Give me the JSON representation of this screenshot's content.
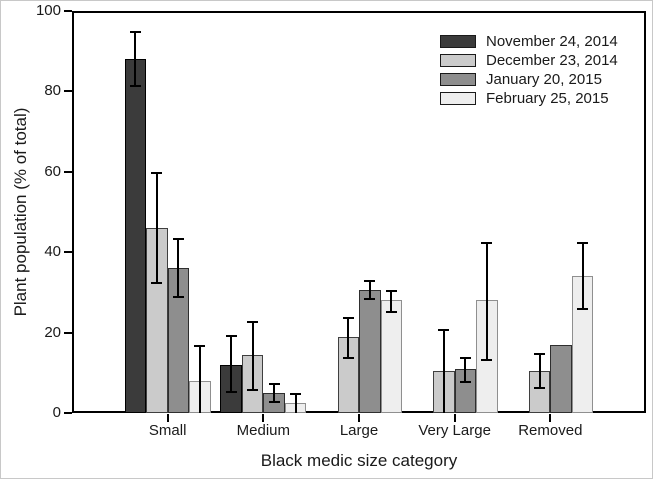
{
  "chart_data": {
    "type": "bar",
    "title": "",
    "xlabel": "Black medic size category",
    "ylabel": "Plant population (% of total)",
    "ylim": [
      0,
      100
    ],
    "yticks": [
      0,
      20,
      40,
      60,
      80,
      100
    ],
    "categories": [
      "Small",
      "Medium",
      "Large",
      "Very Large",
      "Removed"
    ],
    "grid": false,
    "legend_position": "top-right-inside",
    "error_bar_color": "#000000",
    "axis_color": "#000000",
    "series": [
      {
        "name": "November 24, 2014",
        "color": "#3b3b3b",
        "border": "#000000",
        "values": [
          88,
          12,
          0,
          0,
          0
        ],
        "err_lo": [
          81,
          5,
          null,
          null,
          null
        ],
        "err_hi": [
          95,
          19.5,
          null,
          null,
          null
        ]
      },
      {
        "name": "December 23, 2014",
        "color": "#cbcbcb",
        "border": "#3f3f3f",
        "values": [
          46,
          14.5,
          19,
          10.5,
          10.5
        ],
        "err_lo": [
          32,
          5.5,
          13.5,
          0,
          6
        ],
        "err_hi": [
          60,
          23,
          24,
          21,
          15
        ]
      },
      {
        "name": "January 20, 2015",
        "color": "#8e8e8e",
        "border": "#2e2e2e",
        "values": [
          36,
          5,
          30.5,
          11,
          17
        ],
        "err_lo": [
          28.5,
          2.5,
          28,
          7.5,
          null
        ],
        "err_hi": [
          43.5,
          7.5,
          33,
          14,
          null
        ]
      },
      {
        "name": "February 25, 2015",
        "color": "#eeeeee",
        "border": "#8f8f8f",
        "values": [
          8,
          2.5,
          28,
          28,
          34
        ],
        "err_lo": [
          0,
          0,
          25,
          13,
          25.5
        ],
        "err_hi": [
          17,
          5,
          30.5,
          42.5,
          42.5
        ]
      }
    ]
  }
}
